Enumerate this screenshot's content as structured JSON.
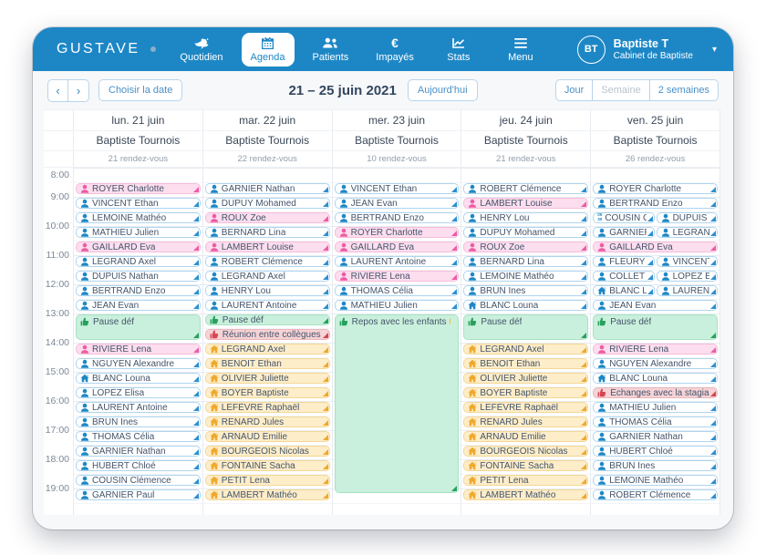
{
  "brand": {
    "logo": "GUSTAVE"
  },
  "nav": {
    "items": [
      {
        "label": "Quotidien",
        "icon": "bird-icon",
        "active": false
      },
      {
        "label": "Agenda",
        "icon": "calendar-icon",
        "active": true
      },
      {
        "label": "Patients",
        "icon": "patients-icon",
        "active": false
      },
      {
        "label": "Impayés",
        "icon": "euro-icon",
        "active": false
      },
      {
        "label": "Stats",
        "icon": "stats-icon",
        "active": false
      },
      {
        "label": "Menu",
        "icon": "menu-icon",
        "active": false
      }
    ],
    "user": {
      "initials": "BT",
      "name": "Baptiste T",
      "subtitle": "Cabinet de Baptiste"
    }
  },
  "toolbar": {
    "prev": "‹",
    "next": "›",
    "choose_date": "Choisir la date",
    "title": "21 – 25 juin 2021",
    "today": "Aujourd'hui",
    "views": [
      {
        "label": "Jour",
        "current": false
      },
      {
        "label": "Semaine",
        "current": true
      },
      {
        "label": "2 semaines",
        "current": false
      }
    ],
    "caret": "▾"
  },
  "colors": {
    "navbar_blue": "#1d87c6",
    "appointment_blue": "#1d87c6",
    "appointment_pink": "#ee5ba4",
    "event_green": "#27a05c",
    "event_red": "#d6454f",
    "home_visit_orange": "#efa92e"
  },
  "calendar": {
    "times": [
      "8:00",
      "9:00",
      "10:00",
      "11:00",
      "12:00",
      "13:00",
      "14:00",
      "15:00",
      "16:00",
      "17:00",
      "18:00",
      "19:00"
    ],
    "days": [
      {
        "date": "lun. 21 juin",
        "practitioner": "Baptiste Tournois",
        "count": "21 rendez-vous",
        "events": [
          {
            "slot": 1,
            "type": "pink",
            "icon": "person",
            "label": "ROYER Charlotte"
          },
          {
            "slot": 2,
            "type": "white",
            "icon": "person",
            "label": "VINCENT Ethan"
          },
          {
            "slot": 3,
            "type": "white",
            "icon": "person",
            "label": "LEMOINE Mathéo"
          },
          {
            "slot": 4,
            "type": "white",
            "icon": "person",
            "label": "MATHIEU Julien"
          },
          {
            "slot": 5,
            "type": "pink",
            "icon": "person",
            "label": "GAILLARD Eva"
          },
          {
            "slot": 6,
            "type": "white",
            "icon": "person",
            "label": "LEGRAND Axel"
          },
          {
            "slot": 7,
            "type": "white",
            "icon": "person",
            "label": "DUPUIS Nathan"
          },
          {
            "slot": 8,
            "type": "white",
            "icon": "person",
            "label": "BERTRAND Enzo"
          },
          {
            "slot": 9,
            "type": "white",
            "icon": "person",
            "label": "JEAN Evan"
          },
          {
            "slot": 10,
            "span": 2,
            "type": "green",
            "icon": "hand",
            "label": "Pause déf"
          },
          {
            "slot": 12,
            "type": "pink",
            "icon": "person",
            "label": "RIVIÈRE Lena"
          },
          {
            "slot": 13,
            "type": "white",
            "icon": "person",
            "label": "NGUYEN Alexandre"
          },
          {
            "slot": 14,
            "type": "white",
            "icon": "home",
            "label": "BLANC Louna"
          },
          {
            "slot": 15,
            "type": "white",
            "icon": "person",
            "label": "LOPÉZ Elisa"
          },
          {
            "slot": 16,
            "type": "white",
            "icon": "person",
            "label": "LAURENT Antoine"
          },
          {
            "slot": 17,
            "type": "white",
            "icon": "person",
            "label": "BRUN Ines"
          },
          {
            "slot": 18,
            "type": "white",
            "icon": "person",
            "label": "THOMAS Célia"
          },
          {
            "slot": 19,
            "type": "white",
            "icon": "person",
            "label": "GARNIER Nathan"
          },
          {
            "slot": 20,
            "type": "white",
            "icon": "person",
            "label": "HUBERT Chloé"
          },
          {
            "slot": 21,
            "type": "white",
            "icon": "person",
            "label": "COUSIN Clémence"
          },
          {
            "slot": 22,
            "type": "white",
            "icon": "person",
            "label": "GARNIER Paul"
          }
        ]
      },
      {
        "date": "mar. 22 juin",
        "practitioner": "Baptiste Tournois",
        "count": "22 rendez-vous",
        "events": [
          {
            "slot": 1,
            "type": "white",
            "icon": "person",
            "label": "GARNIER Nathan"
          },
          {
            "slot": 2,
            "type": "white",
            "icon": "person",
            "label": "DUPUY Mohamed"
          },
          {
            "slot": 3,
            "type": "pink",
            "icon": "person",
            "label": "ROUX Zoe"
          },
          {
            "slot": 4,
            "type": "white",
            "icon": "person",
            "label": "BERNARD Lina"
          },
          {
            "slot": 5,
            "type": "pink",
            "icon": "person",
            "label": "LAMBERT Louise"
          },
          {
            "slot": 6,
            "type": "white",
            "icon": "person",
            "label": "ROBERT Clémence"
          },
          {
            "slot": 7,
            "type": "white",
            "icon": "person",
            "label": "LEGRAND Axel"
          },
          {
            "slot": 8,
            "type": "white",
            "icon": "person",
            "label": "HENRY Lou"
          },
          {
            "slot": 9,
            "type": "white",
            "icon": "person",
            "label": "LAURENT Antoine"
          },
          {
            "slot": 10,
            "type": "green",
            "icon": "hand",
            "label": "Pause déf"
          },
          {
            "slot": 11,
            "type": "red",
            "icon": "hand",
            "label": "Réunion entre collègues"
          },
          {
            "slot": 12,
            "type": "orange",
            "icon": "home",
            "label": "LEGRAND Axel"
          },
          {
            "slot": 13,
            "type": "orange",
            "icon": "home",
            "label": "BENOIT Ethan"
          },
          {
            "slot": 14,
            "type": "orange",
            "icon": "home",
            "label": "OLIVIER Juliette"
          },
          {
            "slot": 15,
            "type": "orange",
            "icon": "home",
            "label": "BOYER Baptiste"
          },
          {
            "slot": 16,
            "type": "orange",
            "icon": "home",
            "label": "LEFÈVRE Raphaël"
          },
          {
            "slot": 17,
            "type": "orange",
            "icon": "home",
            "label": "RENARD Jules"
          },
          {
            "slot": 18,
            "type": "orange",
            "icon": "home",
            "label": "ARNAUD Emilie"
          },
          {
            "slot": 19,
            "type": "orange",
            "icon": "home",
            "label": "BOURGEOIS Nicolas"
          },
          {
            "slot": 20,
            "type": "orange",
            "icon": "home",
            "label": "FONTAINE Sacha"
          },
          {
            "slot": 21,
            "type": "orange",
            "icon": "home",
            "label": "PETIT Lena"
          },
          {
            "slot": 22,
            "type": "orange",
            "icon": "home",
            "label": "LAMBERT Mathéo"
          }
        ]
      },
      {
        "date": "mer. 23 juin",
        "practitioner": "Baptiste Tournois",
        "count": "10 rendez-vous",
        "events": [
          {
            "slot": 1,
            "type": "white",
            "icon": "person",
            "label": "VINCENT Ethan"
          },
          {
            "slot": 2,
            "type": "white",
            "icon": "person",
            "label": "JEAN Evan"
          },
          {
            "slot": 3,
            "type": "white",
            "icon": "person",
            "label": "BERTRAND Enzo"
          },
          {
            "slot": 4,
            "type": "pink",
            "icon": "person",
            "label": "ROYER Charlotte"
          },
          {
            "slot": 5,
            "type": "pink",
            "icon": "person",
            "label": "GAILLARD Eva"
          },
          {
            "slot": 6,
            "type": "white",
            "icon": "person",
            "label": "LAURENT Antoine"
          },
          {
            "slot": 7,
            "type": "pink",
            "icon": "person",
            "label": "RIVIÈRE Lena"
          },
          {
            "slot": 8,
            "type": "white",
            "icon": "person",
            "label": "THOMAS Célia"
          },
          {
            "slot": 9,
            "type": "white",
            "icon": "person",
            "label": "MATHIEU Julien"
          },
          {
            "slot": 10,
            "span": 12.5,
            "type": "green",
            "icon": "hand",
            "label": "Repos avec les enfants 😄"
          }
        ]
      },
      {
        "date": "jeu. 24 juin",
        "practitioner": "Baptiste Tournois",
        "count": "21 rendez-vous",
        "events": [
          {
            "slot": 1,
            "type": "white",
            "icon": "person",
            "label": "ROBERT Clémence"
          },
          {
            "slot": 2,
            "type": "pink",
            "icon": "person",
            "label": "LAMBERT Louise"
          },
          {
            "slot": 3,
            "type": "white",
            "icon": "person",
            "label": "HENRY Lou"
          },
          {
            "slot": 4,
            "type": "white",
            "icon": "person",
            "label": "DUPUY Mohamed"
          },
          {
            "slot": 5,
            "type": "pink",
            "icon": "person",
            "label": "ROUX Zoe"
          },
          {
            "slot": 6,
            "type": "white",
            "icon": "person",
            "label": "BERNARD Lina"
          },
          {
            "slot": 7,
            "type": "white",
            "icon": "person",
            "label": "LEMOINE Mathéo"
          },
          {
            "slot": 8,
            "type": "white",
            "icon": "person",
            "label": "BRUN Ines"
          },
          {
            "slot": 9,
            "type": "white",
            "icon": "home",
            "label": "BLANC Louna"
          },
          {
            "slot": 10,
            "span": 2,
            "type": "green",
            "icon": "hand",
            "label": "Pause déf"
          },
          {
            "slot": 12,
            "type": "orange",
            "icon": "home",
            "label": "LEGRAND Axel"
          },
          {
            "slot": 13,
            "type": "orange",
            "icon": "home",
            "label": "BENOIT Ethan"
          },
          {
            "slot": 14,
            "type": "orange",
            "icon": "home",
            "label": "OLIVIER Juliette"
          },
          {
            "slot": 15,
            "type": "orange",
            "icon": "home",
            "label": "BOYER Baptiste"
          },
          {
            "slot": 16,
            "type": "orange",
            "icon": "home",
            "label": "LEFÈVRE Raphaël"
          },
          {
            "slot": 17,
            "type": "orange",
            "icon": "home",
            "label": "RENARD Jules"
          },
          {
            "slot": 18,
            "type": "orange",
            "icon": "home",
            "label": "ARNAUD Emilie"
          },
          {
            "slot": 19,
            "type": "orange",
            "icon": "home",
            "label": "BOURGEOIS Nicolas"
          },
          {
            "slot": 20,
            "type": "orange",
            "icon": "home",
            "label": "FONTAINE Sacha"
          },
          {
            "slot": 21,
            "type": "orange",
            "icon": "home",
            "label": "PETIT Lena"
          },
          {
            "slot": 22,
            "type": "orange",
            "icon": "home",
            "label": "LAMBERT Mathéo"
          }
        ]
      },
      {
        "date": "ven. 25 juin",
        "practitioner": "Baptiste Tournois",
        "count": "26 rendez-vous",
        "events": [
          {
            "slot": 1,
            "type": "white",
            "icon": "person",
            "label": "ROYER Charlotte"
          },
          {
            "slot": 2,
            "type": "white",
            "icon": "person",
            "label": "BERTRAND Enzo"
          },
          {
            "slot": 3,
            "col": "left",
            "type": "white",
            "icon": "time-badge",
            "time": "09:30",
            "label": "COUSIN Clémence"
          },
          {
            "slot": 3,
            "col": "right",
            "type": "white",
            "icon": "person",
            "label": "DUPUIS Nathan"
          },
          {
            "slot": 4,
            "col": "left",
            "type": "white",
            "icon": "person",
            "label": "GARNIER Paul"
          },
          {
            "slot": 4,
            "col": "right",
            "type": "white",
            "icon": "person",
            "label": "LEGRAND Axel"
          },
          {
            "slot": 5,
            "type": "pink",
            "icon": "person",
            "label": "GAILLARD Eva"
          },
          {
            "slot": 6,
            "col": "left",
            "type": "white",
            "icon": "person",
            "label": "FLEURY Lena"
          },
          {
            "slot": 6,
            "col": "right",
            "type": "white",
            "icon": "person",
            "label": "VINCENT Ethan"
          },
          {
            "slot": 7,
            "col": "left",
            "type": "white",
            "icon": "person",
            "label": "COLLET Elisa"
          },
          {
            "slot": 7,
            "col": "right",
            "type": "white",
            "icon": "person",
            "label": "LOPÉZ Elisa"
          },
          {
            "slot": 8,
            "col": "left",
            "type": "white",
            "icon": "home",
            "label": "BLANC Louna"
          },
          {
            "slot": 8,
            "col": "right",
            "type": "white",
            "icon": "person",
            "label": "LAURENT Antoine"
          },
          {
            "slot": 9,
            "type": "white",
            "icon": "person",
            "label": "JEAN Evan"
          },
          {
            "slot": 10,
            "span": 2,
            "type": "green",
            "icon": "hand",
            "label": "Pause déf"
          },
          {
            "slot": 12,
            "type": "pink",
            "icon": "person",
            "label": "RIVIÈRE Lena"
          },
          {
            "slot": 13,
            "type": "white",
            "icon": "person",
            "label": "NGUYEN Alexandre"
          },
          {
            "slot": 14,
            "type": "white",
            "icon": "home",
            "label": "BLANC Louna"
          },
          {
            "slot": 15,
            "type": "red",
            "icon": "hand",
            "label": "Échanges avec la stagiaire"
          },
          {
            "slot": 16,
            "type": "white",
            "icon": "person",
            "label": "MATHIEU Julien"
          },
          {
            "slot": 17,
            "type": "white",
            "icon": "person",
            "label": "THOMAS Célia"
          },
          {
            "slot": 18,
            "type": "white",
            "icon": "person",
            "label": "GARNIER Nathan"
          },
          {
            "slot": 19,
            "type": "white",
            "icon": "person",
            "label": "HUBERT Chloé"
          },
          {
            "slot": 20,
            "type": "white",
            "icon": "person",
            "label": "BRUN Ines"
          },
          {
            "slot": 21,
            "type": "white",
            "icon": "person",
            "label": "LEMOINE Mathéo"
          },
          {
            "slot": 22,
            "type": "white",
            "icon": "person",
            "label": "ROBERT Clémence"
          }
        ]
      }
    ]
  }
}
